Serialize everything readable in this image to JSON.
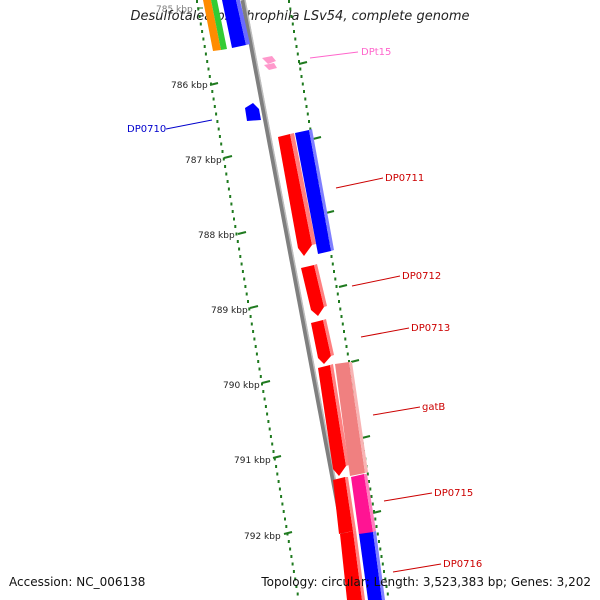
{
  "title": "Desulfotalea psychrophila LSv54, complete genome",
  "accession_text": "Accession: NC_006138",
  "summary_text": "Topology: circular; Length: 3,523,383 bp; Genes: 3,202",
  "tick_labels": [
    "785 kbp",
    "786 kbp",
    "787 kbp",
    "788 kbp",
    "789 kbp",
    "790 kbp",
    "791 kbp",
    "792 kbp"
  ],
  "colors": {
    "backbone": "#7f7f7f",
    "tick": "#1f7a1f",
    "plus_strand_red": "#ff0000",
    "cds_blue": "#0000ff",
    "salmon": "#f08080",
    "magenta": "#ff1493",
    "pink_trna": "#ff99cc",
    "orange": "#ff8c00",
    "green": "#33cc33"
  },
  "gene_labels": [
    {
      "text": "DPt15",
      "color": "#ff66cc"
    },
    {
      "text": "DP0710",
      "color": "#0000cc"
    },
    {
      "text": "DP0711",
      "color": "#cc0000"
    },
    {
      "text": "DP0712",
      "color": "#cc0000"
    },
    {
      "text": "DP0713",
      "color": "#cc0000"
    },
    {
      "text": "gatB",
      "color": "#cc0000"
    },
    {
      "text": "DP0715",
      "color": "#cc0000"
    },
    {
      "text": "DP0716",
      "color": "#cc0000"
    }
  ]
}
